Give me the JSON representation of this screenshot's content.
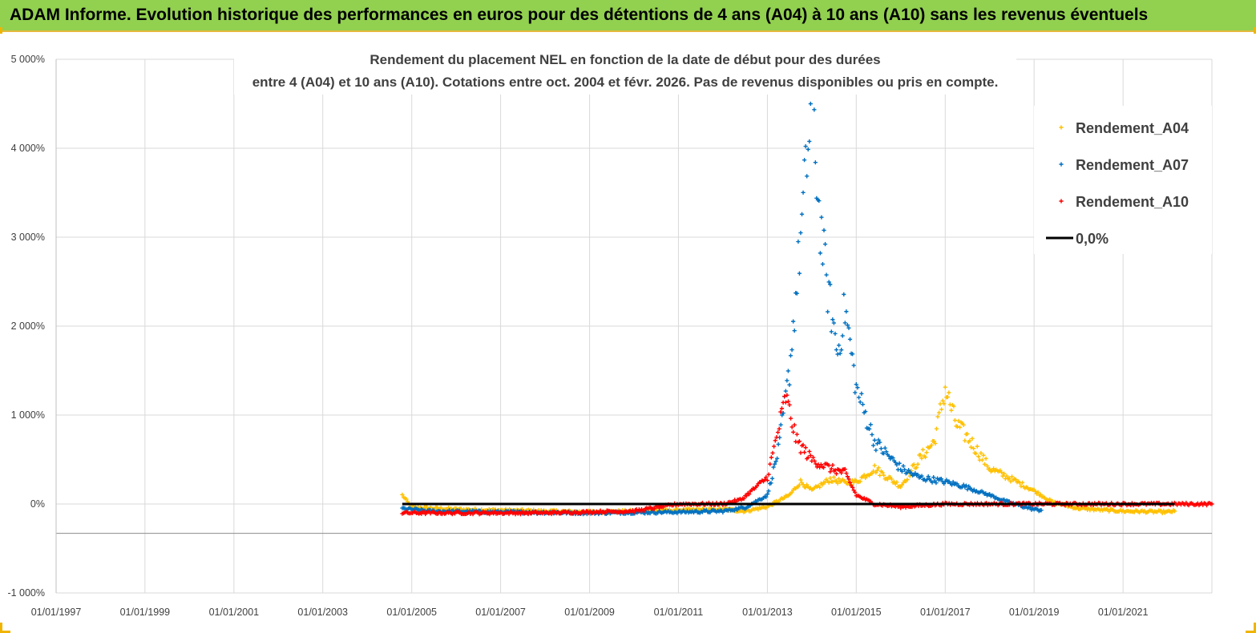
{
  "header": {
    "title": "ADAM Informe. Evolution historique des performances en euros pour des détentions de 4 ans (A04) à 10 ans (A10) sans les revenus éventuels"
  },
  "chart_data": {
    "type": "scatter",
    "title_lines": [
      "Rendement du placement NEL en fonction de la date de début pour des durées",
      "entre 4 (A04) et 10 ans (A10). Cotations entre oct. 2004 et févr. 2026. Pas de revenus disponibles ou pris en compte."
    ],
    "xlabel": "",
    "ylabel": "",
    "x_range": [
      "01/01/1997",
      "01/01/2023"
    ],
    "x_tick_labels": [
      "01/01/1997",
      "01/01/1999",
      "01/01/2001",
      "01/01/2003",
      "01/01/2005",
      "01/01/2007",
      "01/01/2009",
      "01/01/2011",
      "01/01/2013",
      "01/01/2015",
      "01/01/2017",
      "01/01/2019",
      "01/01/2021"
    ],
    "ylim": [
      -1000,
      5000
    ],
    "y_tick_values": [
      -1000,
      0,
      1000,
      2000,
      3000,
      4000,
      5000
    ],
    "y_tick_labels": [
      "-1 000%",
      "0%",
      "1 000%",
      "2 000%",
      "3 000%",
      "4 000%",
      "5 000%"
    ],
    "grid": true,
    "legend_position": "top-right",
    "legend": [
      {
        "label": "Rendement_A04",
        "marker": "plus",
        "color": "#ffc000"
      },
      {
        "label": "Rendement_A07",
        "marker": "plus",
        "color": "#0070c0"
      },
      {
        "label": "Rendement_A10",
        "marker": "plus",
        "color": "#ff0000"
      },
      {
        "label": "0,0%",
        "marker": "line",
        "color": "#000000"
      }
    ],
    "series": [
      {
        "name": "Rendement_A04",
        "color": "#ffc000",
        "points": [
          [
            "2004-10-15",
            100
          ],
          [
            "2005-01-01",
            -40
          ],
          [
            "2006-01-01",
            -60
          ],
          [
            "2007-01-01",
            -70
          ],
          [
            "2008-01-01",
            -80
          ],
          [
            "2009-01-01",
            -90
          ],
          [
            "2010-01-01",
            -80
          ],
          [
            "2011-01-01",
            -70
          ],
          [
            "2012-01-01",
            -60
          ],
          [
            "2012-07-01",
            -80
          ],
          [
            "2013-01-01",
            -30
          ],
          [
            "2013-07-01",
            100
          ],
          [
            "2013-10-01",
            250
          ],
          [
            "2014-01-01",
            150
          ],
          [
            "2014-06-01",
            280
          ],
          [
            "2014-10-01",
            240
          ],
          [
            "2015-01-01",
            250
          ],
          [
            "2015-06-01",
            400
          ],
          [
            "2016-01-01",
            200
          ],
          [
            "2016-06-01",
            500
          ],
          [
            "2016-10-01",
            700
          ],
          [
            "2017-01-01",
            1300
          ],
          [
            "2017-04-01",
            900
          ],
          [
            "2017-08-01",
            700
          ],
          [
            "2018-01-01",
            400
          ],
          [
            "2018-06-01",
            300
          ],
          [
            "2019-01-01",
            150
          ],
          [
            "2019-06-01",
            20
          ],
          [
            "2020-01-01",
            -50
          ],
          [
            "2021-01-01",
            -80
          ],
          [
            "2022-01-01",
            -90
          ],
          [
            "2022-03-01",
            -80
          ]
        ]
      },
      {
        "name": "Rendement_A07",
        "color": "#0070c0",
        "points": [
          [
            "2004-10-15",
            -50
          ],
          [
            "2005-06-01",
            -80
          ],
          [
            "2007-01-01",
            -90
          ],
          [
            "2009-01-01",
            -100
          ],
          [
            "2011-01-01",
            -90
          ],
          [
            "2012-01-01",
            -80
          ],
          [
            "2012-07-01",
            -40
          ],
          [
            "2013-01-01",
            100
          ],
          [
            "2013-04-01",
            600
          ],
          [
            "2013-07-01",
            1500
          ],
          [
            "2013-09-01",
            2500
          ],
          [
            "2013-11-01",
            3500
          ],
          [
            "2014-01-01",
            4550
          ],
          [
            "2014-03-01",
            3300
          ],
          [
            "2014-05-01",
            2500
          ],
          [
            "2014-08-01",
            1700
          ],
          [
            "2014-10-01",
            2200
          ],
          [
            "2015-01-01",
            1300
          ],
          [
            "2015-06-01",
            700
          ],
          [
            "2016-01-01",
            400
          ],
          [
            "2016-06-01",
            300
          ],
          [
            "2017-01-01",
            250
          ],
          [
            "2017-06-01",
            200
          ],
          [
            "2018-01-01",
            100
          ],
          [
            "2018-06-01",
            20
          ],
          [
            "2019-01-01",
            -60
          ],
          [
            "2019-03-01",
            -70
          ]
        ]
      },
      {
        "name": "Rendement_A10",
        "color": "#ff0000",
        "points": [
          [
            "2004-10-15",
            -100
          ],
          [
            "2006-01-01",
            -100
          ],
          [
            "2008-01-01",
            -100
          ],
          [
            "2010-01-01",
            -80
          ],
          [
            "2011-01-01",
            0
          ],
          [
            "2012-01-01",
            0
          ],
          [
            "2012-06-01",
            50
          ],
          [
            "2013-01-01",
            300
          ],
          [
            "2013-06-01",
            1200
          ],
          [
            "2013-09-01",
            700
          ],
          [
            "2014-01-01",
            500
          ],
          [
            "2014-06-01",
            400
          ],
          [
            "2014-10-01",
            350
          ],
          [
            "2015-01-01",
            100
          ],
          [
            "2015-06-01",
            0
          ],
          [
            "2016-01-01",
            -30
          ],
          [
            "2017-01-01",
            0
          ],
          [
            "2019-01-01",
            0
          ],
          [
            "2021-01-01",
            0
          ],
          [
            "2023-01-01",
            0
          ]
        ]
      },
      {
        "name": "0,0%",
        "color": "#000000",
        "points": [
          [
            "2004-10-15",
            0
          ],
          [
            "2022-03-01",
            0
          ]
        ]
      }
    ]
  }
}
